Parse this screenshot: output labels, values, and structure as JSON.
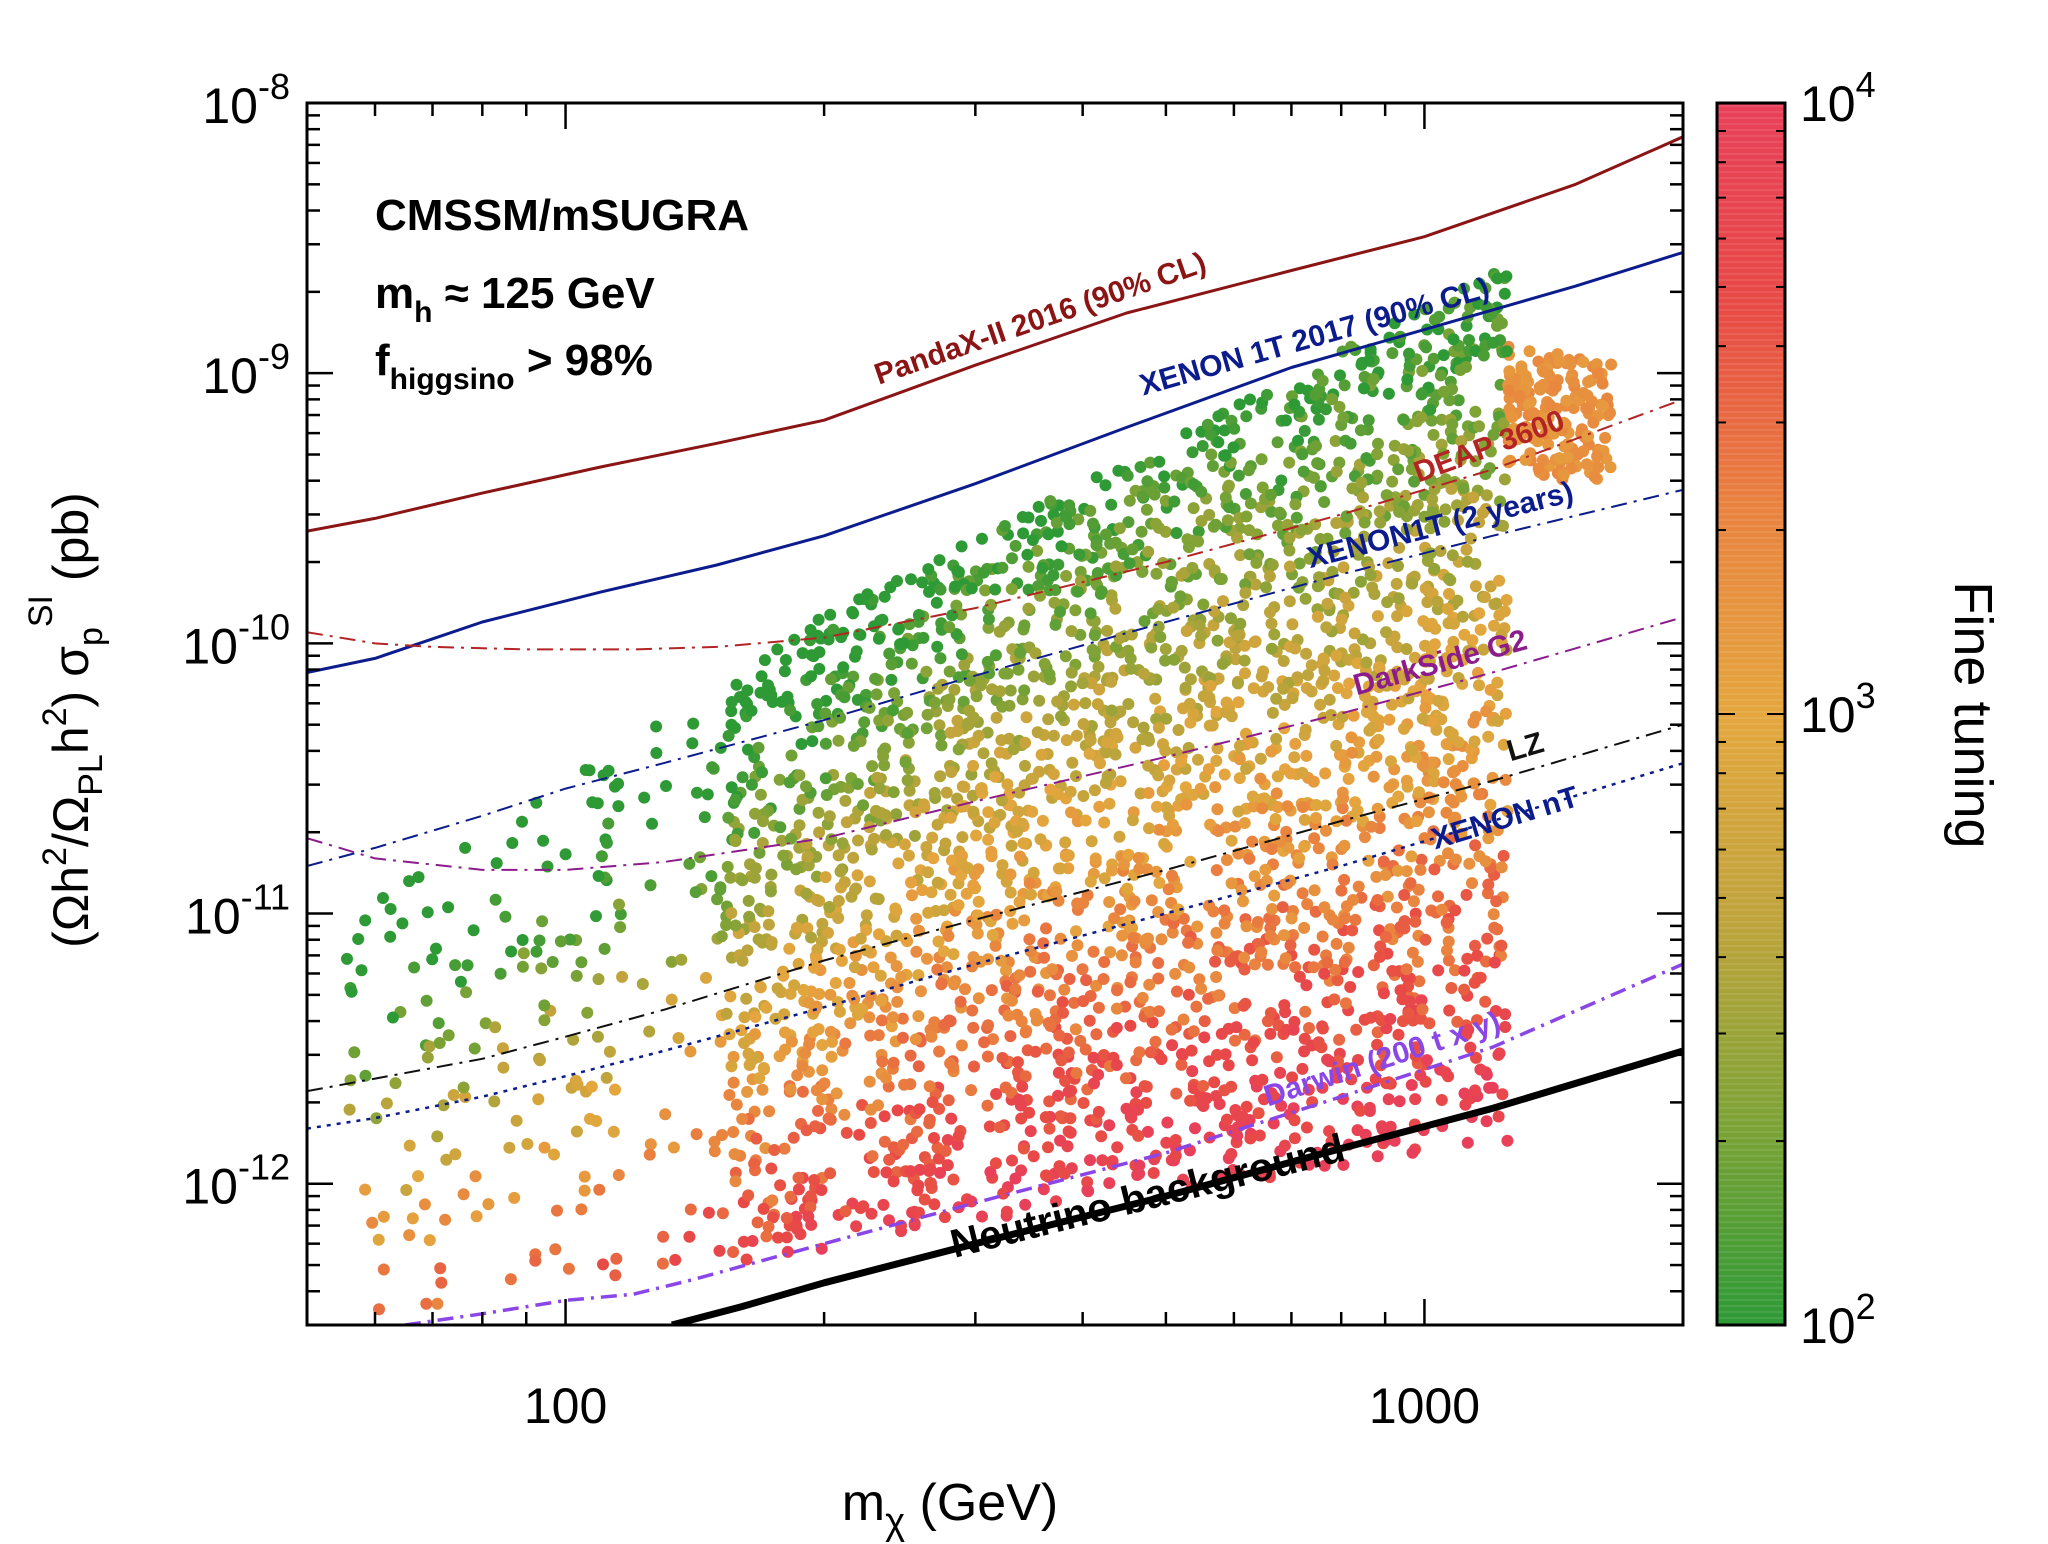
{
  "chart_data": {
    "type": "scatter",
    "xscale": "log",
    "yscale": "log",
    "xlim": [
      50,
      2000
    ],
    "ylim": [
      3e-13,
      1e-08
    ],
    "xlabel_main": "m",
    "xlabel_sub": "χ",
    "xlabel_unit": " (GeV)",
    "ylabel": {
      "p1": "(Ωh",
      "p2": "2",
      "p3": "/Ω",
      "p4": "PL",
      "p5": "h",
      "p6": "2",
      "p7": ") σ",
      "p8": "p",
      "p9": "SI",
      "p10": " (pb)"
    },
    "xticks": [
      {
        "value": 100,
        "label": "100"
      },
      {
        "value": 1000,
        "label": "1000"
      }
    ],
    "yticks": [
      {
        "value": 1e-08,
        "base": "10",
        "exp": "-8"
      },
      {
        "value": 1e-09,
        "base": "10",
        "exp": "-9"
      },
      {
        "value": 1e-10,
        "base": "10",
        "exp": "-10"
      },
      {
        "value": 1e-11,
        "base": "10",
        "exp": "-11"
      },
      {
        "value": 1e-12,
        "base": "10",
        "exp": "-12"
      }
    ],
    "annotation": {
      "line1": "CMSSM/mSUGRA",
      "line2_main": "m",
      "line2_sub": "h",
      "line2_rest": " ≈ 125 GeV",
      "line3_main": "f",
      "line3_sub": "higgsino",
      "line3_rest": " > 98%"
    },
    "colorbar": {
      "title": "Fine tuning",
      "scale": "log",
      "range": [
        100,
        10000
      ],
      "ticks": [
        {
          "value": 10000,
          "base": "10",
          "exp": "4"
        },
        {
          "value": 1000,
          "base": "10",
          "exp": "3"
        },
        {
          "value": 100,
          "base": "10",
          "exp": "2"
        }
      ],
      "colors": [
        "#2e9a36",
        "#7ea336",
        "#c0a43c",
        "#e5a63e",
        "#e9833f",
        "#e84a45",
        "#e8405a"
      ]
    },
    "series": [
      {
        "name": "PandaX-II 2016 (90% CL)",
        "label": "PandaX-II 2016 (90% CL)",
        "color": "#8b1414",
        "style": "solid",
        "width": 3,
        "x": [
          50,
          60,
          80,
          110,
          150,
          200,
          300,
          450,
          700,
          1000,
          1500,
          2000
        ],
        "y": [
          2.6e-10,
          2.9e-10,
          3.6e-10,
          4.5e-10,
          5.5e-10,
          6.7e-10,
          1.07e-09,
          1.67e-09,
          2.4e-09,
          3.2e-09,
          5e-09,
          7.5e-09
        ],
        "label_at": 360,
        "label_off": 0.14
      },
      {
        "name": "XENON 1T 2017 (90% CL)",
        "label": "XENON 1T 2017 (90% CL)",
        "color": "#0c1c8c",
        "style": "solid",
        "width": 3,
        "x": [
          50,
          60,
          80,
          110,
          150,
          200,
          300,
          450,
          700,
          1000,
          1500,
          2000
        ],
        "y": [
          7.8e-11,
          8.8e-11,
          1.2e-10,
          1.55e-10,
          1.95e-10,
          2.5e-10,
          3.9e-10,
          6.3e-10,
          1.05e-09,
          1.45e-09,
          2.1e-09,
          2.8e-09
        ],
        "label_at": 750,
        "label_off": 0.14
      },
      {
        "name": "DEAP 3600",
        "label": "DEAP 3600",
        "color": "#b32424",
        "style": "dashdot",
        "width": 2,
        "x": [
          50,
          60,
          70,
          90,
          120,
          150,
          200,
          300,
          500,
          800,
          1200,
          2000
        ],
        "y": [
          1.1e-10,
          1e-10,
          9.7e-11,
          9.5e-11,
          9.5e-11,
          9.7e-11,
          1.05e-10,
          1.35e-10,
          2e-10,
          3e-10,
          4.4e-10,
          8e-10
        ],
        "label_at": 1200,
        "label_off": 0.14
      },
      {
        "name": "XENON1T (2 years)",
        "label": "XENON1T (2 years)",
        "color": "#0c1c8c",
        "style": "dashdot",
        "width": 2,
        "x": [
          50,
          60,
          80,
          100,
          130,
          200,
          300,
          500,
          800,
          1200,
          2000
        ],
        "y": [
          1.5e-11,
          1.75e-11,
          2.3e-11,
          2.9e-11,
          3.6e-11,
          5.2e-11,
          7.6e-11,
          1.2e-10,
          1.8e-10,
          2.5e-10,
          3.7e-10
        ],
        "label_at": 1050,
        "label_off": 0.14
      },
      {
        "name": "DarkSide G2",
        "label": "DarkSide G2",
        "color": "#8c1c8c",
        "style": "dashdot",
        "width": 2,
        "x": [
          50,
          60,
          80,
          100,
          130,
          200,
          300,
          500,
          800,
          1200,
          2000
        ],
        "y": [
          1.9e-11,
          1.6e-11,
          1.45e-11,
          1.45e-11,
          1.55e-11,
          1.9e-11,
          2.6e-11,
          3.8e-11,
          5.5e-11,
          7.8e-11,
          1.25e-10
        ],
        "label_at": 1050,
        "label_off": 0.14
      },
      {
        "name": "LZ",
        "label": "LZ",
        "color": "#111111",
        "style": "dashdot",
        "width": 2,
        "x": [
          50,
          60,
          80,
          100,
          130,
          200,
          300,
          500,
          800,
          1200,
          2000
        ],
        "y": [
          2.2e-12,
          2.45e-12,
          2.9e-12,
          3.5e-12,
          4.4e-12,
          6.7e-12,
          9.5e-12,
          1.45e-11,
          2.2e-11,
          3.1e-11,
          5e-11
        ],
        "label_at": 1320,
        "label_off": 0.14
      },
      {
        "name": "XENON nT",
        "label": "XENON nT",
        "color": "#0c1c8c",
        "style": "dotted",
        "width": 2.5,
        "x": [
          50,
          60,
          80,
          100,
          130,
          200,
          300,
          500,
          800,
          1200,
          2000
        ],
        "y": [
          1.6e-12,
          1.75e-12,
          2.1e-12,
          2.5e-12,
          3.1e-12,
          4.5e-12,
          6.5e-12,
          1e-11,
          1.5e-11,
          2.2e-11,
          3.6e-11
        ],
        "label_at": 1250,
        "label_off": -0.11
      },
      {
        "name": "Darwin (200 t x y)",
        "label": "Darwin (200 t x y)",
        "color": "#8a46e6",
        "style": "dashdot",
        "width": 3.5,
        "x": [
          65,
          80,
          100,
          120,
          140,
          200,
          300,
          500,
          800,
          1200,
          2000
        ],
        "y": [
          3e-13,
          3.3e-13,
          3.7e-13,
          3.9e-13,
          4.4e-13,
          6e-13,
          8.5e-13,
          1.3e-12,
          2.1e-12,
          3.2e-12,
          6.5e-12
        ],
        "label_at": 900,
        "label_off": 0.14
      },
      {
        "name": "Neutrino background",
        "label": "Neutrino background",
        "color": "#000000",
        "style": "solid",
        "width": 7,
        "x": [
          133,
          160,
          200,
          300,
          500,
          800,
          1200,
          1800,
          2000
        ],
        "y": [
          3e-13,
          3.5e-13,
          4.3e-13,
          6e-13,
          9e-13,
          1.35e-12,
          1.9e-12,
          2.8e-12,
          3.1e-12
        ],
        "label_at": 480,
        "label_off": -0.09
      }
    ],
    "scatter": {
      "description_count": 2600,
      "x_range": [
        50,
        1650
      ],
      "points_note": "dense cloud of model points; colored by fine tuning"
    }
  }
}
